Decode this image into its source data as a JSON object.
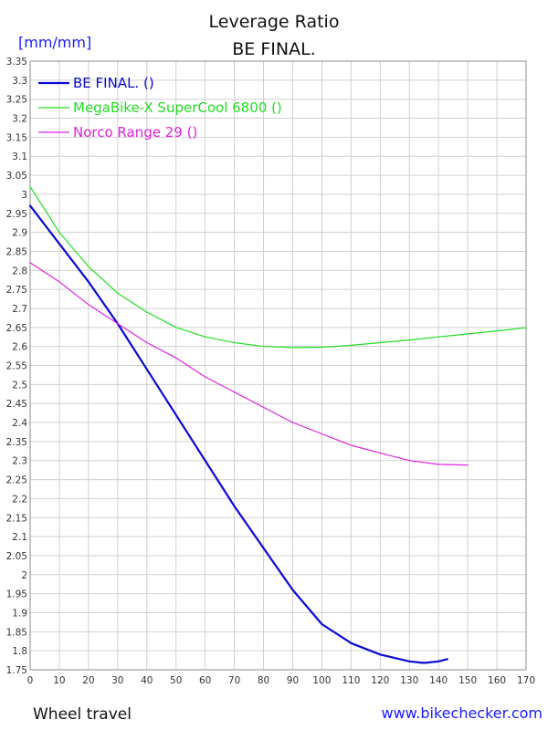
{
  "chart_data": {
    "type": "line",
    "title": "Leverage Ratio",
    "subtitle": "BE FINAL.",
    "ylabel": "[mm/mm]",
    "xlabel": "Wheel travel",
    "footer_url": "www.bikechecker.com",
    "xlim": [
      0,
      170
    ],
    "ylim": [
      1.75,
      3.35
    ],
    "xticks": [
      "0",
      "10",
      "20",
      "30",
      "40",
      "50",
      "60",
      "70",
      "80",
      "90",
      "100",
      "110",
      "120",
      "130",
      "140",
      "150",
      "160",
      "170"
    ],
    "yticks": [
      "1.75",
      "1.8",
      "1.85",
      "1.9",
      "1.95",
      "2",
      "2.05",
      "2.1",
      "2.15",
      "2.2",
      "2.25",
      "2.3",
      "2.35",
      "2.4",
      "2.45",
      "2.5",
      "2.55",
      "2.6",
      "2.65",
      "2.7",
      "2.75",
      "2.8",
      "2.85",
      "2.9",
      "2.95",
      "3",
      "3.05",
      "3.1",
      "3.15",
      "3.2",
      "3.25",
      "3.3",
      "3.35"
    ],
    "grid": true,
    "legend_position": "top-left",
    "series": [
      {
        "name": "BE FINAL. ()",
        "color": "#0a0ad0",
        "x": [
          0,
          10,
          20,
          30,
          40,
          50,
          60,
          70,
          80,
          90,
          100,
          110,
          120,
          130,
          135,
          140,
          143
        ],
        "y": [
          2.97,
          2.87,
          2.77,
          2.66,
          2.54,
          2.42,
          2.3,
          2.18,
          2.07,
          1.96,
          1.87,
          1.82,
          1.79,
          1.772,
          1.768,
          1.772,
          1.778
        ]
      },
      {
        "name": "MegaBike-X SuperCool 6800 ()",
        "color": "#22dd22",
        "x": [
          0,
          10,
          20,
          30,
          40,
          50,
          60,
          70,
          80,
          90,
          100,
          110,
          120,
          130,
          140,
          150,
          160,
          170
        ],
        "y": [
          3.02,
          2.9,
          2.81,
          2.74,
          2.69,
          2.65,
          2.625,
          2.61,
          2.6,
          2.597,
          2.598,
          2.603,
          2.61,
          2.617,
          2.625,
          2.633,
          2.641,
          2.649
        ]
      },
      {
        "name": "Norco Range 29 ()",
        "color": "#dd22dd",
        "x": [
          0,
          10,
          20,
          30,
          40,
          50,
          60,
          70,
          80,
          90,
          100,
          110,
          120,
          130,
          140,
          150
        ],
        "y": [
          2.82,
          2.77,
          2.71,
          2.66,
          2.61,
          2.57,
          2.52,
          2.48,
          2.44,
          2.4,
          2.37,
          2.34,
          2.32,
          2.3,
          2.29,
          2.288
        ]
      }
    ]
  }
}
